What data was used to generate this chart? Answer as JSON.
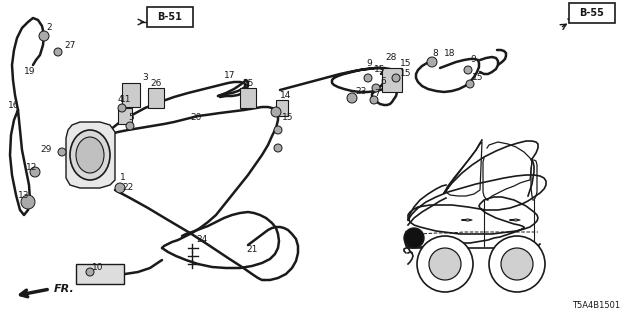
{
  "bg_color": "#ffffff",
  "line_color": "#1a1a1a",
  "diagram_code": "T5A4B1501",
  "b51_label": "B-51",
  "b55_label": "B-55",
  "fr_label": "FR.",
  "figsize": [
    6.4,
    3.2
  ],
  "dpi": 100,
  "xlim": [
    0,
    640
  ],
  "ylim": [
    0,
    320
  ]
}
